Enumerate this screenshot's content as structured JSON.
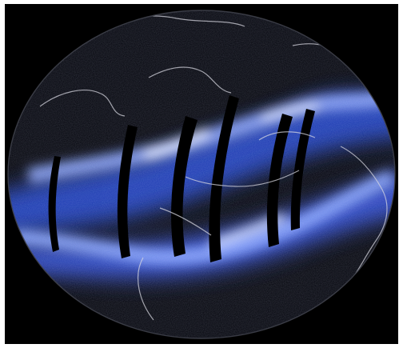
{
  "image": {
    "background_color": "#000000",
    "frame_color": "#ffffff",
    "globe_color": "#05060d",
    "glow_color": "#3f63ff",
    "glow_highlight_color": "#dfe8ff",
    "coastline_color": "#d9d9e2"
  }
}
